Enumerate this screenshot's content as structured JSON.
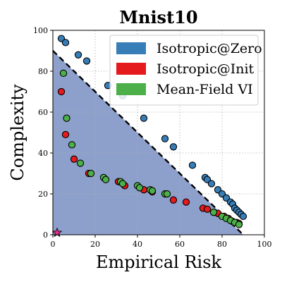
{
  "chart_data": {
    "type": "scatter",
    "title": "Mnist10",
    "xlabel": "Empirical Risk",
    "ylabel": "Complexity",
    "xlim": [
      0,
      100
    ],
    "ylim": [
      0,
      100
    ],
    "xticks": [
      "0",
      "20",
      "40",
      "60",
      "80",
      "100"
    ],
    "yticks": [
      "0",
      "20",
      "40",
      "60",
      "80",
      "100"
    ],
    "grid": true,
    "legend_position": "top-right",
    "boundary_line": {
      "from": [
        0,
        90
      ],
      "to": [
        90,
        0
      ],
      "style": "dashed",
      "color": "#000000"
    },
    "shaded_region": {
      "polygon": [
        [
          0,
          0
        ],
        [
          0,
          90
        ],
        [
          90,
          0
        ]
      ],
      "color": "#8da0cb"
    },
    "series": [
      {
        "name": "Isotropic@Zero",
        "color": "#377eb8",
        "points": [
          [
            4,
            96
          ],
          [
            6,
            94
          ],
          [
            12,
            88
          ],
          [
            16,
            85
          ],
          [
            26,
            73
          ],
          [
            33,
            68
          ],
          [
            43,
            57
          ],
          [
            53,
            47
          ],
          [
            57,
            43
          ],
          [
            66,
            34
          ],
          [
            72,
            28
          ],
          [
            73,
            27
          ],
          [
            75,
            25
          ],
          [
            78,
            22
          ],
          [
            80,
            20
          ],
          [
            82,
            18
          ],
          [
            84,
            16
          ],
          [
            85,
            15
          ],
          [
            86,
            13
          ],
          [
            87,
            12
          ],
          [
            88,
            11
          ],
          [
            89,
            10
          ],
          [
            90,
            9
          ]
        ]
      },
      {
        "name": "Isotropic@Init",
        "color": "#e41a1c",
        "points": [
          [
            4,
            70
          ],
          [
            6,
            49
          ],
          [
            10,
            37
          ],
          [
            17,
            30
          ],
          [
            31,
            26
          ],
          [
            34,
            24
          ],
          [
            43,
            22
          ],
          [
            47,
            21
          ],
          [
            57,
            17
          ],
          [
            63,
            16
          ],
          [
            71,
            13
          ],
          [
            73,
            12.5
          ],
          [
            76,
            11
          ],
          [
            78,
            10.5
          ],
          [
            81,
            9
          ],
          [
            83,
            8
          ],
          [
            84,
            7
          ],
          [
            85,
            6.5
          ],
          [
            87,
            6
          ],
          [
            88,
            5.5
          ]
        ]
      },
      {
        "name": "Mean-Field VI",
        "color": "#4daf4a",
        "points": [
          [
            5,
            79
          ],
          [
            6.5,
            57
          ],
          [
            9,
            44
          ],
          [
            13,
            35
          ],
          [
            18,
            30
          ],
          [
            24,
            28
          ],
          [
            25,
            27
          ],
          [
            32,
            26
          ],
          [
            33,
            25
          ],
          [
            40,
            24
          ],
          [
            41,
            23
          ],
          [
            46,
            22
          ],
          [
            47,
            21.5
          ],
          [
            53,
            20
          ],
          [
            54,
            20
          ],
          [
            76,
            11
          ],
          [
            80,
            9
          ],
          [
            82,
            8
          ],
          [
            84,
            7
          ],
          [
            86,
            6
          ],
          [
            88,
            5
          ]
        ]
      }
    ],
    "highlight_point": {
      "x": 2,
      "y": 1,
      "marker": "star",
      "color": "#e7298a"
    }
  }
}
